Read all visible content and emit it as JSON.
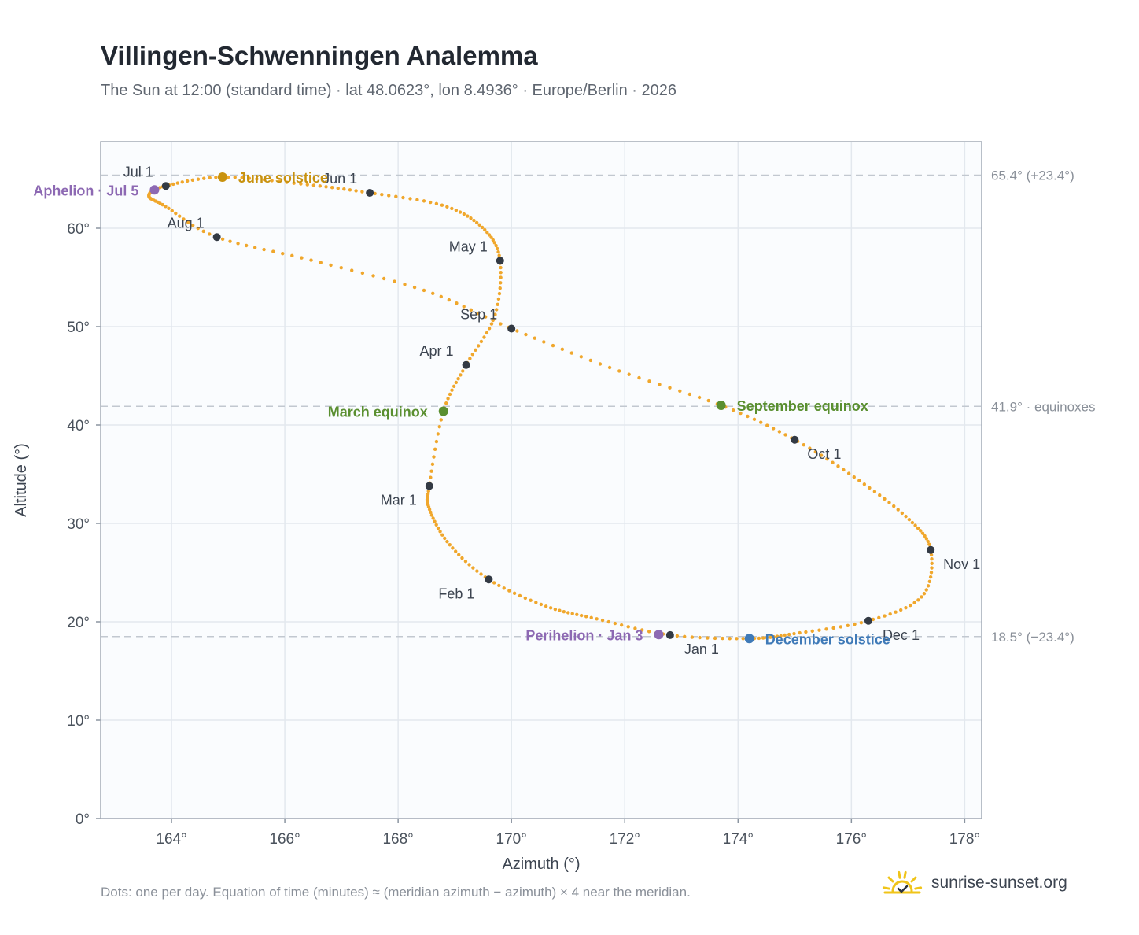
{
  "title": "Villingen-Schwenningen Analemma",
  "subtitle": "The Sun at 12:00 (standard time) · lat 48.0623°, lon 8.4936° · Europe/Berlin · 2026",
  "footnote": "Dots: one per day. Equation of time (minutes) ≈ (meridian azimuth − azimuth) × 4 near the meridian.",
  "brand": "sunrise-sunset.org",
  "colors": {
    "curve": "#f0a72c",
    "month_marker": "#333a44",
    "solstice_june": "#c8920f",
    "equinox": "#5a8f30",
    "solstice_december": "#3f7ab8",
    "apsis": "#8d69b3",
    "reference_line": "#c2c8d0",
    "plot_bg": "#fafcfe",
    "brand_sun": "#f0c419"
  },
  "chart_data": {
    "type": "scatter",
    "xlabel": "Azimuth (°)",
    "ylabel": "Altitude (°)",
    "xlim": [
      162.75,
      178.3
    ],
    "ylim": [
      0,
      68.8
    ],
    "xticks": [
      "164°",
      "166°",
      "168°",
      "170°",
      "172°",
      "174°",
      "176°",
      "178°"
    ],
    "yticks": [
      "0°",
      "10°",
      "20°",
      "30°",
      "40°",
      "50°",
      "60°"
    ],
    "grid": true,
    "reference_lines": [
      {
        "y": 65.4,
        "label": "65.4° (+23.4°)"
      },
      {
        "y": 41.9,
        "label": "41.9° · equinoxes"
      },
      {
        "y": 18.5,
        "label": "18.5° (−23.4°)"
      }
    ],
    "series": [
      {
        "x": [
          172.8,
          171.5,
          170.6,
          169.6,
          168.9,
          168.55,
          168.55,
          168.8,
          169.2,
          169.7,
          169.8,
          169.5,
          168.8,
          167.5,
          166.3,
          164.9,
          163.9,
          163.6,
          163.9,
          164.8,
          166.5,
          168.5,
          170.0,
          171.8,
          173.7,
          175.0,
          176.1,
          177.0,
          177.4,
          177.25,
          176.3,
          175.0,
          174.2,
          172.8
        ],
        "y": [
          18.65,
          20.3,
          21.6,
          24.3,
          27.9,
          31.5,
          33.8,
          41.4,
          46.1,
          51.0,
          56.7,
          60.0,
          62.3,
          63.6,
          64.5,
          65.2,
          64.3,
          63.3,
          62.2,
          59.1,
          56.7,
          53.6,
          49.8,
          45.7,
          42.0,
          38.5,
          34.5,
          30.5,
          27.3,
          22.6,
          20.1,
          18.8,
          18.3,
          18.65
        ]
      }
    ],
    "month_markers": [
      {
        "label": "Jan 1",
        "x": 172.8,
        "y": 18.65
      },
      {
        "label": "Feb 1",
        "x": 169.6,
        "y": 24.3
      },
      {
        "label": "Mar 1",
        "x": 168.55,
        "y": 33.8
      },
      {
        "label": "Apr 1",
        "x": 169.2,
        "y": 46.1
      },
      {
        "label": "May 1",
        "x": 169.8,
        "y": 56.7
      },
      {
        "label": "Jun 1",
        "x": 167.5,
        "y": 63.6
      },
      {
        "label": "Jul 1",
        "x": 163.9,
        "y": 64.3
      },
      {
        "label": "Aug 1",
        "x": 164.8,
        "y": 59.1
      },
      {
        "label": "Sep 1",
        "x": 170.0,
        "y": 49.8
      },
      {
        "label": "Oct 1",
        "x": 175.0,
        "y": 38.5
      },
      {
        "label": "Nov 1",
        "x": 177.4,
        "y": 27.3
      },
      {
        "label": "Dec 1",
        "x": 176.3,
        "y": 20.1
      }
    ],
    "events": [
      {
        "label": "June solstice",
        "x": 164.9,
        "y": 65.2,
        "kind": "solstice_june"
      },
      {
        "label": "March equinox",
        "x": 168.8,
        "y": 41.4,
        "kind": "equinox"
      },
      {
        "label": "September equinox",
        "x": 173.7,
        "y": 42.0,
        "kind": "equinox"
      },
      {
        "label": "December solstice",
        "x": 174.2,
        "y": 18.3,
        "kind": "solstice_december"
      },
      {
        "label": "Aphelion · Jul 5",
        "x": 163.7,
        "y": 63.9,
        "kind": "apsis"
      },
      {
        "label": "Perihelion · Jan 3",
        "x": 172.6,
        "y": 18.7,
        "kind": "apsis"
      }
    ]
  }
}
